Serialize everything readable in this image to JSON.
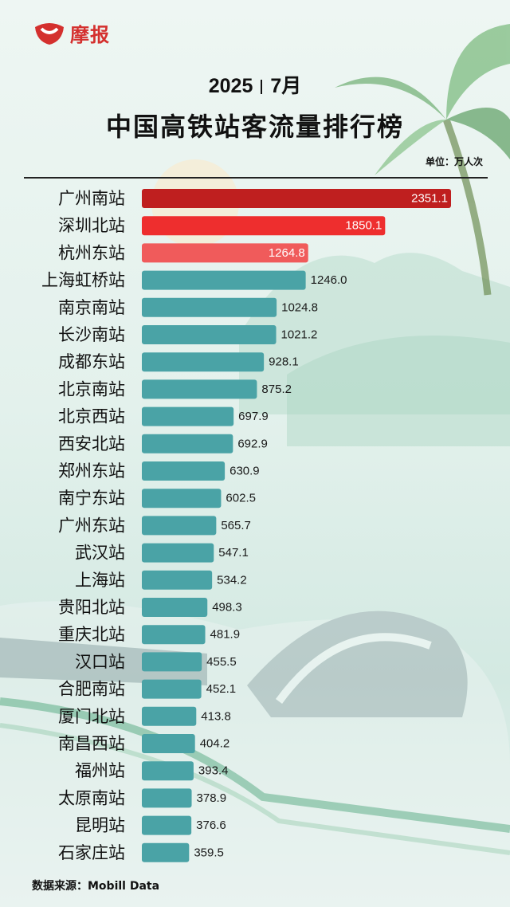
{
  "brand": {
    "logo_text": "摩报",
    "logo_color": "#d4302e"
  },
  "header": {
    "year": "2025",
    "month": "7月",
    "title": "中国高铁站客流量排行榜",
    "unit": "单位：万人次"
  },
  "source": "数据来源：Mobill Data",
  "colors": {
    "top1": "#bf1f1f",
    "top2": "#ee2e2e",
    "top3": "#f05b5b",
    "default_bar": "#4aa3a6",
    "label": "#111111",
    "value_on_bar": "#ffffff",
    "value_outside": "#1a1a1a"
  },
  "chart_data": {
    "type": "bar",
    "orientation": "horizontal",
    "unit": "万人次",
    "categories": [
      "广州南站",
      "深圳北站",
      "杭州东站",
      "上海虹桥站",
      "南京南站",
      "长沙南站",
      "成都东站",
      "北京南站",
      "北京西站",
      "西安北站",
      "郑州东站",
      "南宁东站",
      "广州东站",
      "武汉站",
      "上海站",
      "贵阳北站",
      "重庆北站",
      "汉口站",
      "合肥南站",
      "厦门北站",
      "南昌西站",
      "福州站",
      "太原南站",
      "昆明站",
      "石家庄站"
    ],
    "values": [
      2351.1,
      1850.1,
      1264.8,
      1246.0,
      1024.8,
      1021.2,
      928.1,
      875.2,
      697.9,
      692.9,
      630.9,
      602.5,
      565.7,
      547.1,
      534.2,
      498.3,
      481.9,
      455.5,
      452.1,
      413.8,
      404.2,
      393.4,
      378.9,
      376.6,
      359.5
    ],
    "value_labels": [
      "2351.1",
      "1850.1",
      "1264.8",
      "1246.0",
      "1024.8",
      "1021.2",
      "928.1",
      "875.2",
      "697.9",
      "692.9",
      "630.9",
      "602.5",
      "565.7",
      "547.1",
      "534.2",
      "498.3",
      "481.9",
      "455.5",
      "452.1",
      "413.8",
      "404.2",
      "393.4",
      "378.9",
      "376.6",
      "359.5"
    ],
    "highlight_top": 3,
    "xlim": [
      0,
      2351.1
    ],
    "grid": false,
    "legend": "none"
  }
}
